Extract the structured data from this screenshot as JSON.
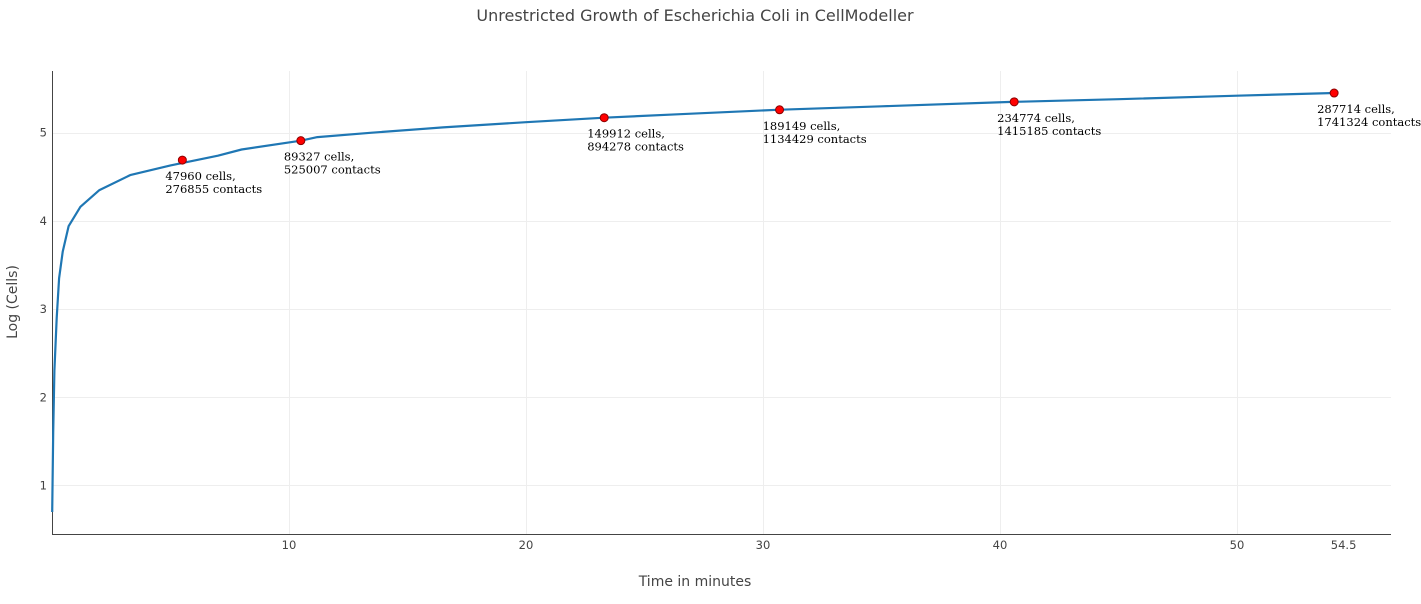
{
  "chart_data": {
    "type": "line",
    "title": "Unrestricted Growth of Escherichia Coli in CellModeller",
    "xlabel": "Time in minutes",
    "ylabel": "Log (Cells)",
    "xlim": [
      0,
      56.5
    ],
    "ylim": [
      0.45,
      5.7
    ],
    "xticks": [
      {
        "value": 10,
        "label": "10"
      },
      {
        "value": 20,
        "label": "20"
      },
      {
        "value": 30,
        "label": "30"
      },
      {
        "value": 40,
        "label": "40"
      },
      {
        "value": 50,
        "label": "50"
      },
      {
        "value": 54.5,
        "label": "54.5"
      }
    ],
    "yticks": [
      {
        "value": 1,
        "label": "1"
      },
      {
        "value": 2,
        "label": "2"
      },
      {
        "value": 3,
        "label": "3"
      },
      {
        "value": 4,
        "label": "4"
      },
      {
        "value": 5,
        "label": "5"
      }
    ],
    "grid": true,
    "legend": "none",
    "colors": {
      "line": "#1f77b4",
      "marker": "#ff0000",
      "marker_edge": "#8b0000"
    },
    "series": [
      {
        "x": [
          0.01,
          0.05,
          0.1,
          0.2,
          0.3,
          0.45,
          0.7,
          1.2,
          2.0,
          3.3,
          5.0,
          7.0,
          8.0,
          10.5,
          11.2,
          13.5,
          16.5,
          20.0,
          23.3,
          26.5,
          30.6,
          35.0,
          40.5,
          45.0,
          50.0,
          54.1
        ],
        "y": [
          0.7,
          1.6,
          2.3,
          2.9,
          3.35,
          3.65,
          3.94,
          4.16,
          4.35,
          4.52,
          4.63,
          4.74,
          4.81,
          4.91,
          4.95,
          5.0,
          5.06,
          5.12,
          5.17,
          5.21,
          5.26,
          5.3,
          5.35,
          5.38,
          5.42,
          5.45
        ]
      }
    ],
    "annotations": [
      {
        "x": 5.5,
        "y": 4.69,
        "line1": "47960 cells,",
        "line2": "276855 contacts"
      },
      {
        "x": 10.5,
        "y": 4.91,
        "line1": "89327 cells,",
        "line2": "525007 contacts"
      },
      {
        "x": 23.3,
        "y": 5.17,
        "line1": "149912 cells,",
        "line2": "894278 contacts"
      },
      {
        "x": 30.7,
        "y": 5.26,
        "line1": "189149 cells,",
        "line2": "1134429 contacts"
      },
      {
        "x": 40.6,
        "y": 5.35,
        "line1": "234774 cells,",
        "line2": "1415185 contacts"
      },
      {
        "x": 54.1,
        "y": 5.45,
        "line1": "287714 cells,",
        "line2": "1741324 contacts"
      }
    ]
  }
}
